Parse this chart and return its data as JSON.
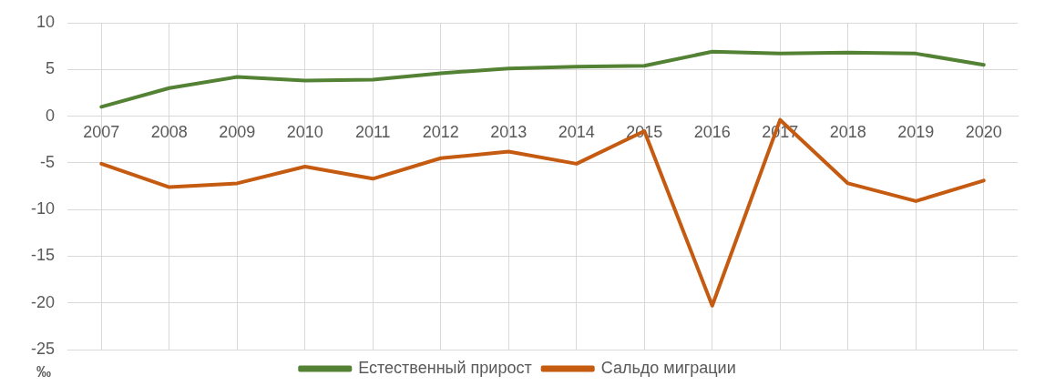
{
  "chart_data": {
    "type": "line",
    "ylabel": "‰",
    "categories": [
      "2007",
      "2008",
      "2009",
      "2010",
      "2011",
      "2012",
      "2013",
      "2014",
      "2015",
      "2016",
      "2017",
      "2018",
      "2019",
      "2020"
    ],
    "series": [
      {
        "name": "Естественный прирост",
        "color": "#548235",
        "values": [
          1.0,
          3.0,
          4.2,
          3.8,
          3.9,
          4.6,
          5.1,
          5.3,
          5.4,
          6.9,
          6.7,
          6.8,
          6.7,
          5.5
        ]
      },
      {
        "name": "Сальдо миграции",
        "color": "#c55a11",
        "values": [
          -5.1,
          -7.6,
          -7.2,
          -5.4,
          -6.7,
          -4.5,
          -3.8,
          -5.1,
          -1.6,
          -20.3,
          -0.4,
          -7.2,
          -9.1,
          -6.9
        ]
      }
    ],
    "ylim": [
      -25,
      10
    ],
    "yticks": [
      -25,
      -20,
      -15,
      -10,
      -5,
      0,
      5,
      10
    ],
    "grid": true,
    "legend": "bottom",
    "marker": "none",
    "line_style": "solid"
  }
}
